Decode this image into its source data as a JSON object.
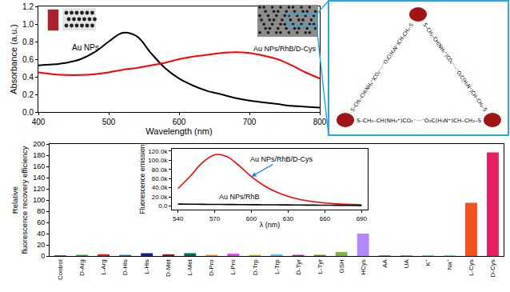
{
  "chart_data": [
    {
      "type": "line",
      "x_label": "Wavelength (nm)",
      "y_label": "Absorbance (a.u.)",
      "x": [
        400,
        420,
        440,
        460,
        480,
        500,
        520,
        540,
        560,
        580,
        600,
        620,
        640,
        660,
        680,
        700,
        720,
        740,
        760,
        780,
        800
      ],
      "series": [
        {
          "name": "Au NPs",
          "color": "#000000",
          "line_style": "solid",
          "values": [
            0.53,
            0.54,
            0.56,
            0.6,
            0.68,
            0.8,
            0.9,
            0.86,
            0.67,
            0.5,
            0.38,
            0.3,
            0.24,
            0.2,
            0.16,
            0.13,
            0.11,
            0.09,
            0.07,
            0.06,
            0.05
          ]
        },
        {
          "name": "Au NPs/RhB/D-Cys",
          "color": "#ff0000",
          "line_style": "solid",
          "values": [
            0.45,
            0.43,
            0.42,
            0.42,
            0.43,
            0.45,
            0.48,
            0.5,
            0.53,
            0.56,
            0.6,
            0.63,
            0.65,
            0.67,
            0.68,
            0.67,
            0.64,
            0.6,
            0.53,
            0.45,
            0.38
          ]
        }
      ],
      "xlim": [
        400,
        800
      ],
      "xticks": [
        400,
        500,
        600,
        700,
        800
      ],
      "ylim": [
        0,
        1.2
      ],
      "yticks": [
        {
          "value": 0,
          "label": "0.0"
        },
        {
          "value": 0.2,
          "label": "0.2"
        },
        {
          "value": 0.4,
          "label": "0.4"
        },
        {
          "value": 0.6,
          "label": "0.6"
        },
        {
          "value": 0.8,
          "label": "0.8"
        },
        {
          "value": 1.0,
          "label": "1.0"
        },
        {
          "value": 1.2,
          "label": "1.2"
        }
      ],
      "grid": false
    },
    {
      "type": "bar",
      "y_label": "Relative\nfluorescence recovery efficiency",
      "categories": [
        "Control",
        "D-Arg",
        "L-Arg",
        "D-His",
        "L-His",
        "D-Met",
        "L-Met",
        "D-Pro",
        "L-Pro",
        "D-Trp",
        "L-Trp",
        "D-Tyr",
        "L-Tyr",
        "GSH",
        "HCys",
        "AA",
        "UA",
        "K⁺",
        "Na⁺",
        "L-Cys",
        "D-Cys"
      ],
      "values": [
        1,
        2,
        3,
        2,
        5,
        3,
        5,
        2,
        4,
        2,
        3,
        2,
        2,
        7,
        40,
        1,
        1,
        1,
        1,
        95,
        185
      ],
      "colors": [
        "#222222",
        "#2ca02c",
        "#e31a1c",
        "#1f77b4",
        "#1a237e",
        "#8b1a1a",
        "#00695c",
        "#ff8c00",
        "#e040fb",
        "#c9b400",
        "#4fc3f7",
        "#9c27b0",
        "#808000",
        "#7cb342",
        "#b388ff",
        "#3f51b5",
        "#5c6bc0",
        "#29b6f6",
        "#26c6da",
        "#f4511e",
        "#e91e63"
      ],
      "ylim": [
        0,
        200
      ],
      "yticks": [
        0,
        20,
        40,
        60,
        80,
        100,
        120,
        140,
        160,
        180,
        200
      ],
      "grid": false
    },
    {
      "type": "line",
      "x_label": "λ (nm)",
      "y_label": "Fluorescence emission",
      "x": [
        540,
        550,
        560,
        570,
        580,
        590,
        600,
        610,
        620,
        630,
        640,
        650,
        660,
        670,
        680,
        690
      ],
      "series": [
        {
          "name": "Au NPs/RhB/D-Cys",
          "color": "#ff0000",
          "line_style": "solid",
          "values": [
            38000,
            65000,
            95000,
            112000,
            108000,
            88000,
            64000,
            45000,
            31000,
            21000,
            14000,
            9500,
            6500,
            4500,
            3200,
            2500
          ]
        },
        {
          "name": "Au NPs/RhB",
          "color": "#000000",
          "line_style": "solid",
          "values": [
            4000,
            3800,
            3600,
            3400,
            3200,
            3000,
            2800,
            2600,
            2400,
            2200,
            2000,
            1800,
            1600,
            1400,
            1200,
            1000
          ]
        }
      ],
      "xlim": [
        535,
        695
      ],
      "xticks": [
        540,
        570,
        600,
        630,
        660,
        690
      ],
      "ylim": [
        -8000,
        125000
      ],
      "yticks": [
        {
          "value": 0,
          "label": "0.0"
        },
        {
          "value": 20000,
          "label": "20.0k"
        },
        {
          "value": 40000,
          "label": "40.0k"
        },
        {
          "value": 60000,
          "label": "60.0k"
        },
        {
          "value": 80000,
          "label": "80.0k"
        },
        {
          "value": 100000,
          "label": "100.0k"
        },
        {
          "value": 120000,
          "label": "120.0k"
        }
      ],
      "grid": false
    }
  ],
  "diagram": {
    "links": [
      "S–CH₂–CH(NH₃⁺)CO₂⁻···⁻O₂C(H₃N⁺)CH–CH₂–S",
      "S–CH₂–CH(NH₃⁺)CO₂⁻···⁻O₂C(H₃N⁺)CH–CH₂–S",
      "S–CH₂–CH(NH₃⁺)CO₂⁻···⁻O₂C(H₃N⁺)CH–CH₂–S"
    ]
  }
}
